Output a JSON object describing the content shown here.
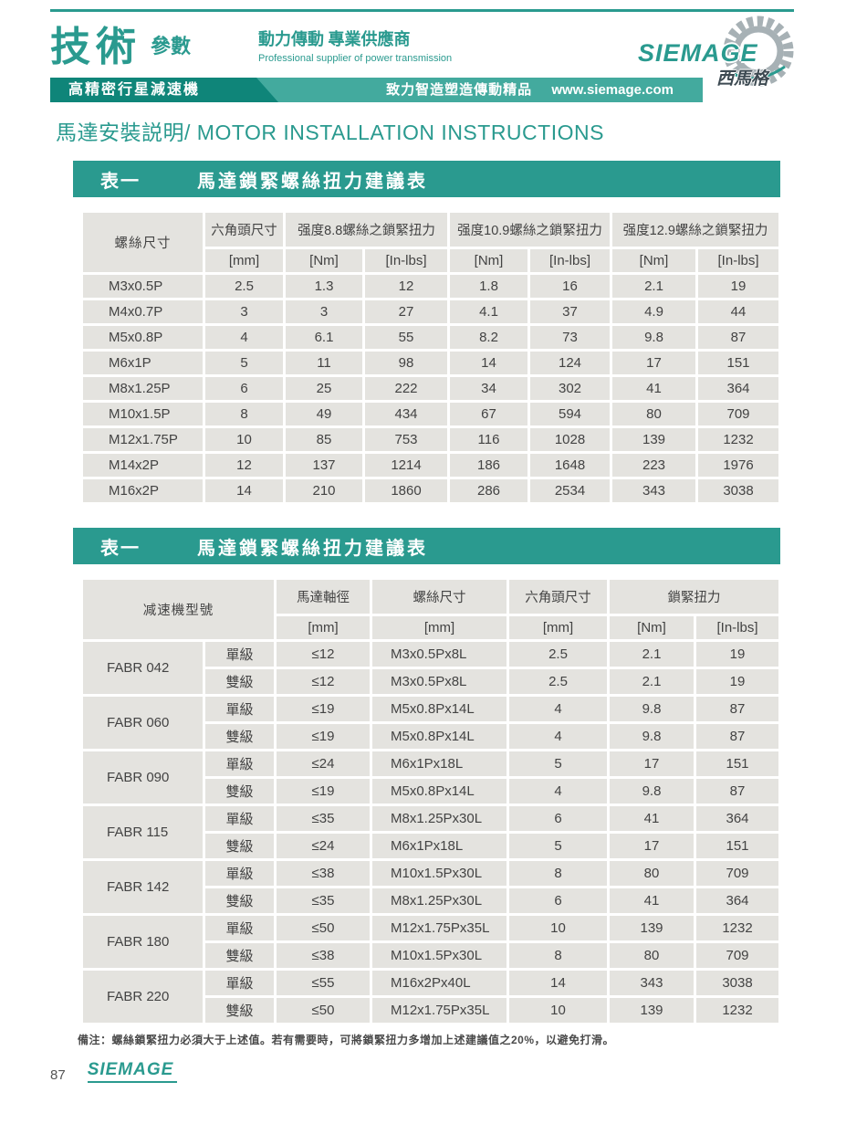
{
  "colors": {
    "accent": "#2a9a8f",
    "accent_dark": "#0f8579",
    "accent_light": "#43aa9e",
    "cell_bg": "#e4e3df",
    "text": "#434343",
    "gear_gray": "#a7b1b5"
  },
  "header": {
    "brand_main": "技術",
    "brand_sub": "參數",
    "tagline_cjk": "動力傳動 專業供應商",
    "tagline_en": "Professional supplier of power transmission",
    "banner_left": "高精密行星減速機",
    "banner_slogan": "致力智造塑造傳動精品",
    "banner_url": "www.siemage.com",
    "logo_text": "SIEMAGE",
    "logo_cjk": "西馬格"
  },
  "page_title": "馬達安裝説明/ MOTOR INSTALLATION INSTRUCTIONS",
  "table1": {
    "bar_label": "表一",
    "bar_title": "馬達鎖緊螺絲扭力建議表",
    "head": {
      "screw_size": "螺絲尺寸",
      "hex_size": "六角頭尺寸",
      "grade_88": "强度8.8螺絲之鎖緊扭力",
      "grade_109": "强度10.9螺絲之鎖緊扭力",
      "grade_129": "强度12.9螺絲之鎖緊扭力",
      "unit_mm": "[mm]",
      "unit_nm": "[Nm]",
      "unit_inlbs": "[In-lbs]"
    },
    "rows": [
      [
        "M3x0.5P",
        "2.5",
        "1.3",
        "12",
        "1.8",
        "16",
        "2.1",
        "19"
      ],
      [
        "M4x0.7P",
        "3",
        "3",
        "27",
        "4.1",
        "37",
        "4.9",
        "44"
      ],
      [
        "M5x0.8P",
        "4",
        "6.1",
        "55",
        "8.2",
        "73",
        "9.8",
        "87"
      ],
      [
        "M6x1P",
        "5",
        "11",
        "98",
        "14",
        "124",
        "17",
        "151"
      ],
      [
        "M8x1.25P",
        "6",
        "25",
        "222",
        "34",
        "302",
        "41",
        "364"
      ],
      [
        "M10x1.5P",
        "8",
        "49",
        "434",
        "67",
        "594",
        "80",
        "709"
      ],
      [
        "M12x1.75P",
        "10",
        "85",
        "753",
        "116",
        "1028",
        "139",
        "1232"
      ],
      [
        "M14x2P",
        "12",
        "137",
        "1214",
        "186",
        "1648",
        "223",
        "1976"
      ],
      [
        "M16x2P",
        "14",
        "210",
        "1860",
        "286",
        "2534",
        "343",
        "3038"
      ]
    ]
  },
  "table2": {
    "bar_label": "表一",
    "bar_title": "馬達鎖緊螺絲扭力建議表",
    "head": {
      "model": "减速機型號",
      "shaft_dia": "馬達軸徑",
      "screw_size": "螺絲尺寸",
      "hex_size": "六角頭尺寸",
      "torque": "鎖緊扭力",
      "unit_mm": "[mm]",
      "unit_nm": "[Nm]",
      "unit_inlbs": "[In-lbs]"
    },
    "groups": [
      {
        "model": "FABR 042",
        "rows": [
          [
            "單級",
            "≤12",
            "M3x0.5Px8L",
            "2.5",
            "2.1",
            "19"
          ],
          [
            "雙級",
            "≤12",
            "M3x0.5Px8L",
            "2.5",
            "2.1",
            "19"
          ]
        ]
      },
      {
        "model": "FABR 060",
        "rows": [
          [
            "單級",
            "≤19",
            "M5x0.8Px14L",
            "4",
            "9.8",
            "87"
          ],
          [
            "雙級",
            "≤19",
            "M5x0.8Px14L",
            "4",
            "9.8",
            "87"
          ]
        ]
      },
      {
        "model": "FABR 090",
        "rows": [
          [
            "單級",
            "≤24",
            "M6x1Px18L",
            "5",
            "17",
            "151"
          ],
          [
            "雙級",
            "≤19",
            "M5x0.8Px14L",
            "4",
            "9.8",
            "87"
          ]
        ]
      },
      {
        "model": "FABR 115",
        "rows": [
          [
            "單級",
            "≤35",
            "M8x1.25Px30L",
            "6",
            "41",
            "364"
          ],
          [
            "雙級",
            "≤24",
            "M6x1Px18L",
            "5",
            "17",
            "151"
          ]
        ]
      },
      {
        "model": "FABR 142",
        "rows": [
          [
            "單級",
            "≤38",
            "M10x1.5Px30L",
            "8",
            "80",
            "709"
          ],
          [
            "雙級",
            "≤35",
            "M8x1.25Px30L",
            "6",
            "41",
            "364"
          ]
        ]
      },
      {
        "model": "FABR 180",
        "rows": [
          [
            "單級",
            "≤50",
            "M12x1.75Px35L",
            "10",
            "139",
            "1232"
          ],
          [
            "雙級",
            "≤38",
            "M10x1.5Px30L",
            "8",
            "80",
            "709"
          ]
        ]
      },
      {
        "model": "FABR 220",
        "rows": [
          [
            "單級",
            "≤55",
            "M16x2Px40L",
            "14",
            "343",
            "3038"
          ],
          [
            "雙級",
            "≤50",
            "M12x1.75Px35L",
            "10",
            "139",
            "1232"
          ]
        ]
      }
    ]
  },
  "footnote": "備注：螺絲鎖緊扭力必須大于上述值。若有需要時，可將鎖緊扭力多增加上述建議值之20%，以避免打滑。",
  "footer": {
    "page_number": "87",
    "logo_text": "SIEMAGE"
  }
}
